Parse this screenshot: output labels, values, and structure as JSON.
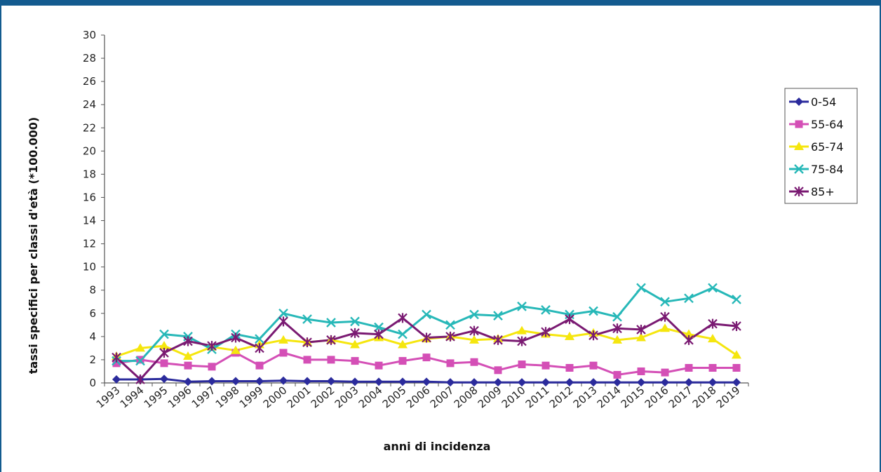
{
  "chart_data": {
    "type": "line",
    "xlabel": "anni di incidenza",
    "ylabel": "tassi specifici per classi d'età (*100.000)",
    "ylim": [
      0,
      30
    ],
    "ytick_step": 2,
    "grid": false,
    "legend_position": "right",
    "x": [
      "1993",
      "1994",
      "1995",
      "1996",
      "1997",
      "1998",
      "1999",
      "2000",
      "2001",
      "2002",
      "2003",
      "2004",
      "2005",
      "2006",
      "2007",
      "2008",
      "2009",
      "2010",
      "2011",
      "2012",
      "2013",
      "2014",
      "2015",
      "2016",
      "2017",
      "2018",
      "2019"
    ],
    "series": [
      {
        "name": "0-54",
        "color": "#2b2b9c",
        "marker": "diamond",
        "values": [
          0.3,
          0.3,
          0.35,
          0.1,
          0.15,
          0.15,
          0.15,
          0.2,
          0.15,
          0.15,
          0.1,
          0.1,
          0.1,
          0.1,
          0.05,
          0.05,
          0.05,
          0.05,
          0.05,
          0.05,
          0.05,
          0.05,
          0.05,
          0.05,
          0.05,
          0.05,
          0.05
        ]
      },
      {
        "name": "55-64",
        "color": "#d44fb6",
        "marker": "square",
        "values": [
          1.7,
          2.0,
          1.7,
          1.5,
          1.4,
          2.6,
          1.5,
          2.6,
          2.0,
          2.0,
          1.9,
          1.5,
          1.9,
          2.2,
          1.7,
          1.8,
          1.1,
          1.6,
          1.5,
          1.3,
          1.5,
          0.7,
          1.0,
          0.9,
          1.3,
          1.3,
          1.3
        ]
      },
      {
        "name": "65-74",
        "color": "#f5e60e",
        "marker": "triangle",
        "values": [
          2.3,
          3.0,
          3.2,
          2.3,
          3.1,
          2.8,
          3.3,
          3.7,
          3.5,
          3.7,
          3.3,
          3.9,
          3.3,
          3.8,
          4.0,
          3.7,
          3.8,
          4.5,
          4.2,
          4.0,
          4.3,
          3.7,
          3.9,
          4.7,
          4.2,
          3.8,
          2.4
        ]
      },
      {
        "name": "75-84",
        "color": "#27b8b8",
        "marker": "x",
        "values": [
          1.9,
          1.9,
          4.2,
          4.0,
          2.9,
          4.2,
          3.8,
          6.0,
          5.5,
          5.2,
          5.3,
          4.8,
          4.2,
          5.9,
          5.0,
          5.9,
          5.8,
          6.6,
          6.3,
          5.9,
          6.2,
          5.7,
          8.2,
          7.0,
          7.3,
          8.2,
          7.2
        ]
      },
      {
        "name": "85+",
        "color": "#7a1a72",
        "marker": "star",
        "values": [
          2.2,
          0.3,
          2.6,
          3.6,
          3.2,
          3.9,
          3.0,
          5.3,
          3.5,
          3.7,
          4.3,
          4.2,
          5.6,
          3.9,
          4.0,
          4.5,
          3.7,
          3.6,
          4.4,
          5.5,
          4.1,
          4.7,
          4.6,
          5.7,
          3.7,
          5.1,
          4.9
        ]
      }
    ]
  }
}
